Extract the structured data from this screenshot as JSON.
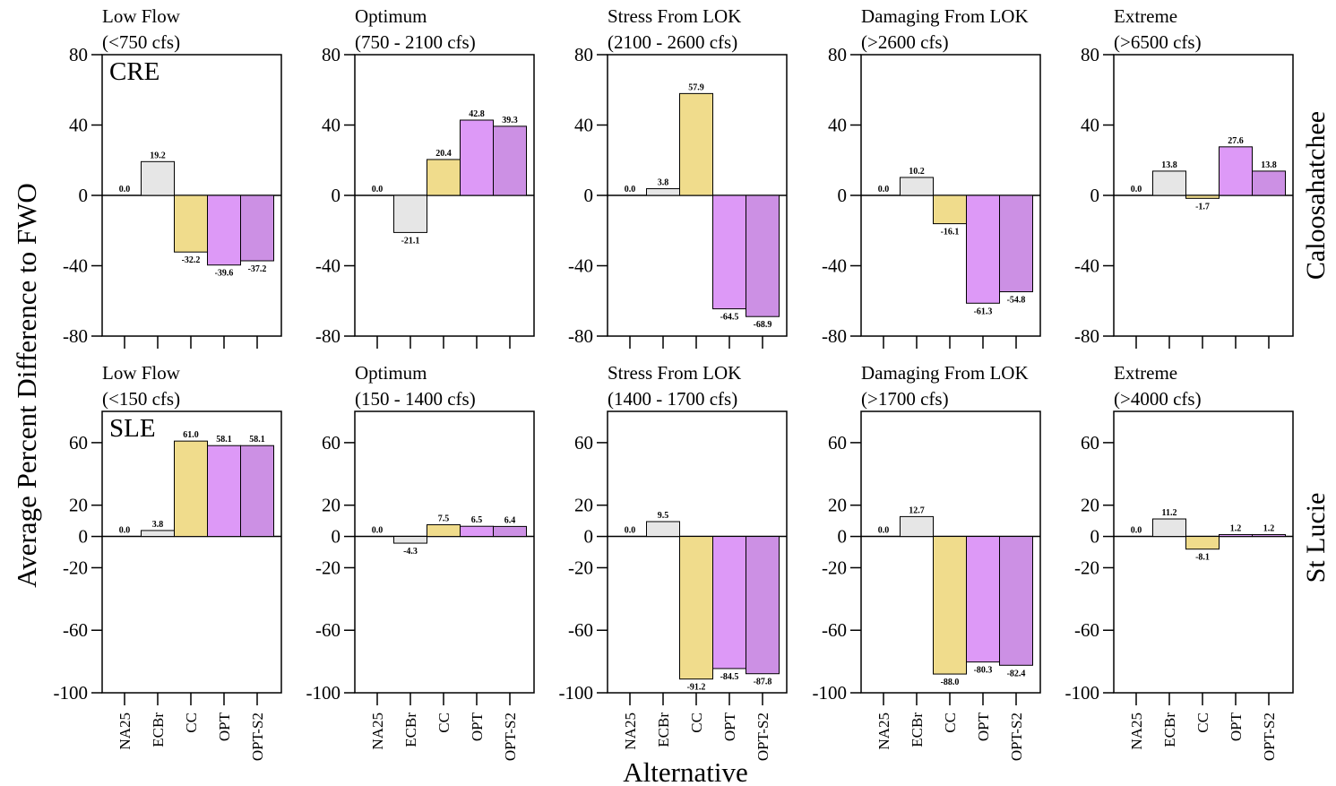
{
  "chart_data": {
    "type": "bar",
    "ylabel": "Average Percent Difference to FWO",
    "xlabel": "Alternative",
    "categories": [
      "NA25",
      "ECBr",
      "CC",
      "OPT",
      "OPT-S2"
    ],
    "colors": [
      "#ffffff",
      "#e6e6e6",
      "#f0dc8c",
      "#dd99f7",
      "#cc90e4"
    ],
    "rows": [
      {
        "label": "Caloosahatchee",
        "tag": "CRE",
        "ylim": [
          -80,
          80
        ],
        "yticks": [
          "80",
          "40",
          "0",
          "-40",
          "-80"
        ],
        "ytick_values": [
          80,
          40,
          0,
          -40,
          -80
        ],
        "show_category_labels": false,
        "panels": [
          {
            "title1": "Low Flow",
            "title2": "(<750 cfs)",
            "values": [
              0.0,
              19.2,
              -32.2,
              -39.6,
              -37.2
            ],
            "labels": [
              "0.0",
              "19.2",
              "-32.2",
              "-39.6",
              "-37.2"
            ]
          },
          {
            "title1": "Optimum",
            "title2": "(750 - 2100 cfs)",
            "values": [
              0.0,
              -21.1,
              20.4,
              42.8,
              39.3
            ],
            "labels": [
              "0.0",
              "-21.1",
              "20.4",
              "42.8",
              "39.3"
            ]
          },
          {
            "title1": "Stress From LOK",
            "title2": "(2100 - 2600 cfs)",
            "values": [
              0.0,
              3.8,
              57.9,
              -64.5,
              -68.9
            ],
            "labels": [
              "0.0",
              "3.8",
              "57.9",
              "-64.5",
              "-68.9"
            ]
          },
          {
            "title1": "Damaging From LOK",
            "title2": "(>2600 cfs)",
            "values": [
              0.0,
              10.2,
              -16.1,
              -61.3,
              -54.8
            ],
            "labels": [
              "0.0",
              "10.2",
              "-16.1",
              "-61.3",
              "-54.8"
            ]
          },
          {
            "title1": "Extreme",
            "title2": "(>6500 cfs)",
            "values": [
              0.0,
              13.8,
              -1.7,
              27.6,
              13.8
            ],
            "labels": [
              "0.0",
              "13.8",
              "-1.7",
              "27.6",
              "13.8"
            ]
          }
        ]
      },
      {
        "label": "St Lucie",
        "tag": "SLE",
        "ylim": [
          -100,
          80
        ],
        "yticks": [
          "60",
          "20",
          "0",
          "-20",
          "-60",
          "-100"
        ],
        "ytick_values": [
          60,
          20,
          0,
          -20,
          -60,
          -100
        ],
        "show_category_labels": true,
        "panels": [
          {
            "title1": "Low Flow",
            "title2": "(<150 cfs)",
            "values": [
              0.0,
              3.8,
              61.0,
              58.1,
              58.1
            ],
            "labels": [
              "0.0",
              "3.8",
              "61.0",
              "58.1",
              "58.1"
            ]
          },
          {
            "title1": "Optimum",
            "title2": "(150 - 1400 cfs)",
            "values": [
              0.0,
              -4.3,
              7.5,
              6.5,
              6.4
            ],
            "labels": [
              "0.0",
              "-4.3",
              "7.5",
              "6.5",
              "6.4"
            ]
          },
          {
            "title1": "Stress From LOK",
            "title2": "(1400 - 1700 cfs)",
            "values": [
              0.0,
              9.5,
              -91.2,
              -84.5,
              -87.8
            ],
            "labels": [
              "0.0",
              "9.5",
              "-91.2",
              "-84.5",
              "-87.8"
            ]
          },
          {
            "title1": "Damaging From LOK",
            "title2": "(>1700 cfs)",
            "values": [
              0.0,
              12.7,
              -88.0,
              -80.3,
              -82.4
            ],
            "labels": [
              "0.0",
              "12.7",
              "-88.0",
              "-80.3",
              "-82.4"
            ]
          },
          {
            "title1": "Extreme",
            "title2": "(>4000 cfs)",
            "values": [
              0.0,
              11.2,
              -8.1,
              1.2,
              1.2
            ],
            "labels": [
              "0.0",
              "11.2",
              "-8.1",
              "1.2",
              "1.2"
            ]
          }
        ]
      }
    ]
  }
}
